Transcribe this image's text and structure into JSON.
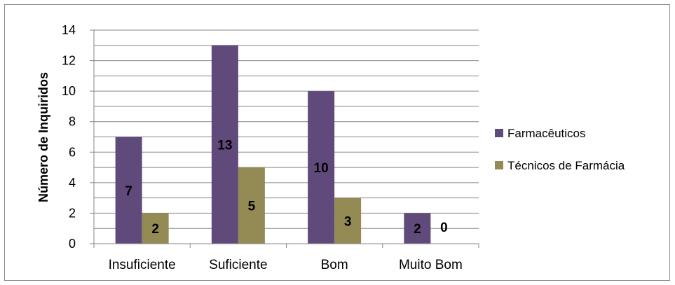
{
  "chart_data": {
    "type": "bar",
    "title": "",
    "xlabel": "",
    "ylabel": "Número de Inquiridos",
    "ylim": [
      0,
      14
    ],
    "y_ticks": [
      "0",
      "2",
      "4",
      "6",
      "8",
      "10",
      "12",
      "14"
    ],
    "categories": [
      "Insuficiente",
      "Suficiente",
      "Bom",
      "Muito Bom"
    ],
    "series": [
      {
        "name": "Farmacêuticos",
        "values": [
          7,
          13,
          10,
          2
        ],
        "color": "#604a7b"
      },
      {
        "name": "Técnicos de Farmácia",
        "values": [
          2,
          5,
          3,
          0
        ],
        "color": "#948a54"
      }
    ],
    "grid": true,
    "legend": "right"
  }
}
